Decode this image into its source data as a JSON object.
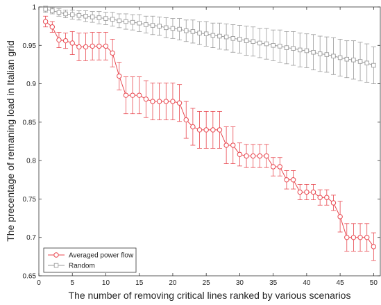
{
  "chart_data": {
    "type": "line",
    "xlabel": "The number of removing critical lines ranked by various scenarios",
    "ylabel": "The precentage of remaning load in Italian grid",
    "xlim": [
      0,
      51
    ],
    "ylim": [
      0.65,
      1.0
    ],
    "xticks": [
      0,
      5,
      10,
      15,
      20,
      25,
      30,
      35,
      40,
      45,
      50
    ],
    "yticks": [
      0.65,
      0.7,
      0.75,
      0.8,
      0.85,
      0.9,
      0.95,
      1
    ],
    "xtick_labels": [
      "0",
      "5",
      "10",
      "15",
      "20",
      "25",
      "30",
      "35",
      "40",
      "45",
      "50"
    ],
    "ytick_labels": [
      "0.65",
      "0.7",
      "0.75",
      "0.8",
      "0.85",
      "0.9",
      "0.95",
      "1"
    ],
    "grid": false,
    "legend_position": "bottom-left",
    "x": [
      1,
      2,
      3,
      4,
      5,
      6,
      7,
      8,
      9,
      10,
      11,
      12,
      13,
      14,
      15,
      16,
      17,
      18,
      19,
      20,
      21,
      22,
      23,
      24,
      25,
      26,
      27,
      28,
      29,
      30,
      31,
      32,
      33,
      34,
      35,
      36,
      37,
      38,
      39,
      40,
      41,
      42,
      43,
      44,
      45,
      46,
      47,
      48,
      49,
      50
    ],
    "series": [
      {
        "name": "Averaged power flow",
        "color": "#e8474f",
        "marker": "circle",
        "values": [
          0.981,
          0.974,
          0.957,
          0.956,
          0.953,
          0.948,
          0.948,
          0.949,
          0.949,
          0.949,
          0.94,
          0.91,
          0.885,
          0.885,
          0.885,
          0.88,
          0.877,
          0.877,
          0.877,
          0.877,
          0.875,
          0.853,
          0.844,
          0.84,
          0.84,
          0.84,
          0.84,
          0.82,
          0.82,
          0.808,
          0.806,
          0.806,
          0.806,
          0.806,
          0.792,
          0.792,
          0.775,
          0.775,
          0.759,
          0.759,
          0.759,
          0.752,
          0.752,
          0.745,
          0.727,
          0.7,
          0.7,
          0.7,
          0.7,
          0.688
        ],
        "err": [
          0.007,
          0.007,
          0.01,
          0.01,
          0.015,
          0.018,
          0.018,
          0.018,
          0.018,
          0.018,
          0.018,
          0.018,
          0.024,
          0.024,
          0.024,
          0.024,
          0.024,
          0.024,
          0.024,
          0.024,
          0.024,
          0.024,
          0.024,
          0.024,
          0.024,
          0.024,
          0.024,
          0.024,
          0.024,
          0.015,
          0.015,
          0.015,
          0.015,
          0.015,
          0.012,
          0.012,
          0.012,
          0.012,
          0.01,
          0.01,
          0.01,
          0.01,
          0.01,
          0.01,
          0.02,
          0.018,
          0.018,
          0.018,
          0.018,
          0.018
        ]
      },
      {
        "name": "Random",
        "color": "#9a9a9a",
        "marker": "square",
        "values": [
          0.997,
          0.995,
          0.993,
          0.991,
          0.99,
          0.989,
          0.988,
          0.987,
          0.986,
          0.985,
          0.984,
          0.982,
          0.981,
          0.98,
          0.979,
          0.977,
          0.976,
          0.975,
          0.973,
          0.972,
          0.971,
          0.969,
          0.968,
          0.966,
          0.965,
          0.963,
          0.962,
          0.961,
          0.959,
          0.958,
          0.956,
          0.955,
          0.953,
          0.952,
          0.95,
          0.949,
          0.947,
          0.946,
          0.944,
          0.943,
          0.941,
          0.939,
          0.938,
          0.936,
          0.934,
          0.932,
          0.931,
          0.929,
          0.927,
          0.924
        ],
        "err": [
          0.004,
          0.004,
          0.005,
          0.005,
          0.006,
          0.006,
          0.007,
          0.007,
          0.008,
          0.008,
          0.009,
          0.009,
          0.01,
          0.01,
          0.011,
          0.011,
          0.012,
          0.012,
          0.013,
          0.013,
          0.014,
          0.014,
          0.015,
          0.015,
          0.016,
          0.016,
          0.017,
          0.017,
          0.018,
          0.018,
          0.019,
          0.019,
          0.019,
          0.02,
          0.02,
          0.021,
          0.021,
          0.022,
          0.022,
          0.022,
          0.023,
          0.023,
          0.023,
          0.024,
          0.024,
          0.024,
          0.025,
          0.025,
          0.025,
          0.024
        ]
      }
    ]
  }
}
